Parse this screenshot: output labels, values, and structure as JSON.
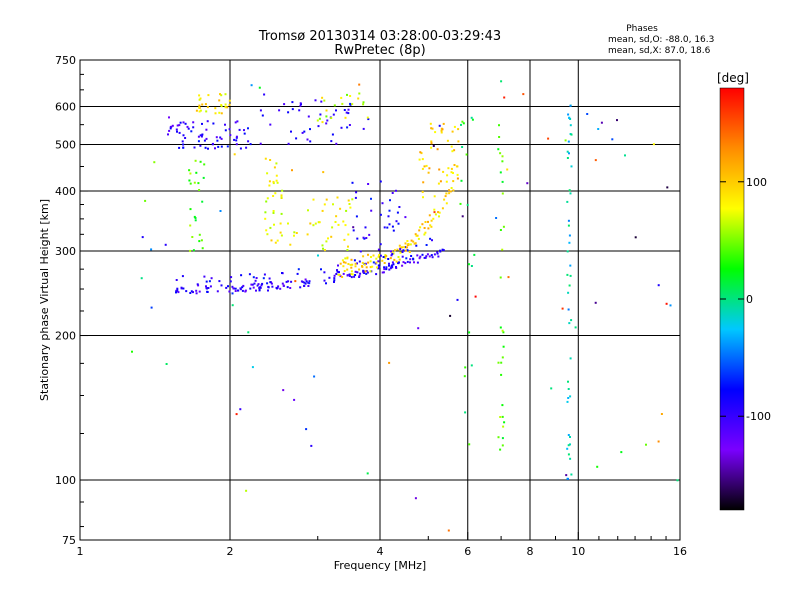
{
  "chart_data": {
    "type": "scatter",
    "title": "Tromsø 20130314 03:28:00-03:29:43",
    "subtitle": "RwPretec (8p)",
    "xlabel": "Frequency [MHz]",
    "ylabel": "Stationary phase Virtual Height [km]",
    "x_scale": "log",
    "y_scale": "log",
    "xlim": [
      1,
      16
    ],
    "ylim": [
      75,
      750
    ],
    "x_ticks": [
      1,
      2,
      4,
      6,
      8,
      10,
      16
    ],
    "y_ticks": [
      75,
      100,
      200,
      300,
      400,
      500,
      600,
      750
    ],
    "x_tick_labels": [
      "1",
      "2",
      "4",
      "6",
      "8",
      "10",
      "16"
    ],
    "y_tick_labels": [
      "75",
      "100",
      "200",
      "300",
      "400",
      "500",
      "600",
      "750"
    ],
    "grid": true,
    "legend_title": "Phases",
    "legend_lines": [
      "mean, sd,O: -88.0, 16.3",
      "mean, sd,X: 87.0, 18.6"
    ],
    "colorbar": {
      "label": "[deg]",
      "range": [
        -180,
        180
      ],
      "ticks": [
        100,
        0,
        -100
      ],
      "tick_labels": [
        "100",
        "0",
        "-100"
      ],
      "colors": [
        "#000000",
        "#7a00ff",
        "#0000ff",
        "#00c8ff",
        "#00ff00",
        "#ffff00",
        "#ff8c00",
        "#ff0000"
      ]
    },
    "traces": [
      {
        "x_range": [
          1.55,
          5.4
        ],
        "height": [
          250,
          300
        ],
        "phase": -100,
        "count": 150,
        "shape": "o_trace"
      },
      {
        "x_range": [
          1.55,
          5.1
        ],
        "height": [
          255,
          310
        ],
        "phase": -90,
        "count": 80,
        "shape": "o_trace_b"
      },
      {
        "x_range": [
          3.3,
          5.7
        ],
        "height": [
          280,
          420
        ],
        "phase": 95,
        "count": 110,
        "shape": "x_trace"
      },
      {
        "x_range": [
          4.8,
          5.8
        ],
        "height": [
          380,
          560
        ],
        "phase": 100,
        "count": 50,
        "shape": "x_upper"
      },
      {
        "x_range": [
          1.5,
          2.2
        ],
        "height": [
          490,
          560
        ],
        "phase": -95,
        "count": 70,
        "shape": "band"
      },
      {
        "x_range": [
          2.3,
          3.8
        ],
        "height": [
          500,
          620
        ],
        "phase": -95,
        "count": 45,
        "shape": "band"
      },
      {
        "x_range": [
          1.7,
          2.0
        ],
        "height": [
          580,
          640
        ],
        "phase": 90,
        "count": 30,
        "shape": "band"
      },
      {
        "x_range": [
          1.65,
          1.78
        ],
        "height": [
          300,
          470
        ],
        "phase": 40,
        "count": 25,
        "shape": "column"
      },
      {
        "x_range": [
          2.35,
          2.55
        ],
        "height": [
          310,
          470
        ],
        "phase": 80,
        "count": 35,
        "shape": "column"
      },
      {
        "x_range": [
          2.6,
          3.6
        ],
        "height": [
          300,
          390
        ],
        "phase": 80,
        "count": 40,
        "shape": "band"
      },
      {
        "x_range": [
          3.0,
          3.8
        ],
        "height": [
          550,
          640
        ],
        "phase": 70,
        "count": 20,
        "shape": "band"
      },
      {
        "x_range": [
          3.5,
          4.5
        ],
        "height": [
          290,
          420
        ],
        "phase": -90,
        "count": 40,
        "shape": "band"
      },
      {
        "x_range": [
          9.5,
          9.7
        ],
        "height": [
          100,
          620
        ],
        "phase": -20,
        "count": 45,
        "shape": "column"
      },
      {
        "x_range": [
          6.9,
          7.1
        ],
        "height": [
          110,
          580
        ],
        "phase": 40,
        "count": 30,
        "shape": "column"
      },
      {
        "x_range": [
          5.8,
          6.2
        ],
        "height": [
          110,
          590
        ],
        "phase": 20,
        "count": 18,
        "shape": "column"
      },
      {
        "x_range": [
          1.05,
          16
        ],
        "height": [
          78,
          700
        ],
        "phase": 0,
        "count": 80,
        "shape": "noise"
      }
    ]
  }
}
